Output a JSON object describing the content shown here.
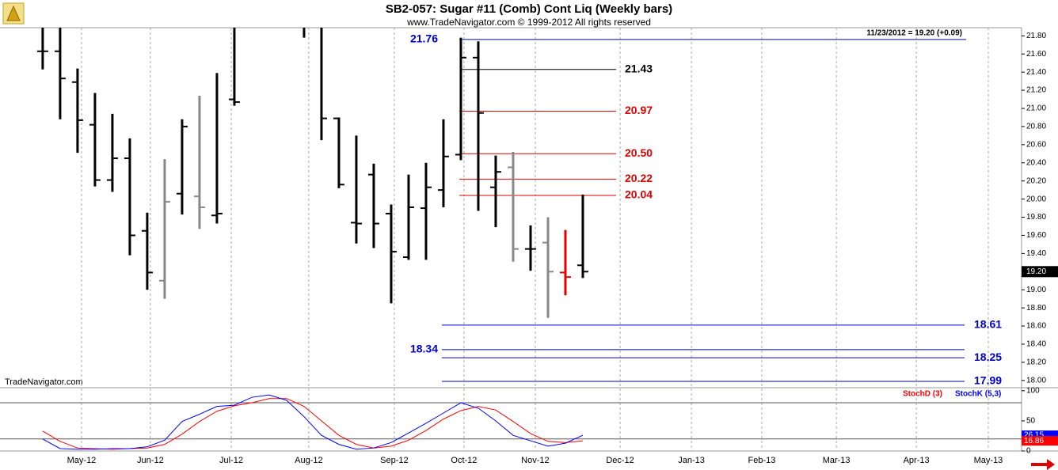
{
  "chart_data": [
    {
      "type": "ohlc",
      "title": "SB2-057:  Sugar #11 (Comb) Cont Liq  (Weekly bars)",
      "subtitle": "www.TradeNavigator.com © 1999-2012 All rights reserved",
      "watermark": "TradeNavigator.com",
      "last_note": "11/23/2012 = 19.20 (+0.09)",
      "last_price": {
        "value": 19.2,
        "label": "19.20"
      },
      "x": [
        0,
        1,
        2,
        3,
        4,
        5,
        6,
        7,
        8,
        9,
        10,
        11,
        15,
        16,
        17,
        18,
        19,
        20,
        21,
        22,
        23,
        24,
        25,
        26,
        27,
        28,
        29,
        30,
        31
      ],
      "open": [
        21.63,
        21.63,
        21.29,
        20.82,
        20.21,
        20.45,
        19.65,
        19.1,
        20.06,
        20.03,
        19.82,
        21.1,
        21.95,
        21.95,
        20.89,
        19.74,
        20.27,
        19.84,
        19.36,
        19.9,
        20.1,
        20.49,
        21.56,
        20.13,
        20.35,
        19.45,
        19.52,
        19.19,
        19.27
      ],
      "high": [
        21.98,
        21.98,
        21.44,
        21.17,
        20.94,
        20.67,
        19.85,
        20.44,
        20.88,
        21.14,
        21.39,
        21.98,
        21.98,
        21.98,
        20.9,
        20.7,
        20.39,
        19.94,
        20.27,
        20.4,
        20.88,
        21.78,
        21.74,
        20.48,
        20.52,
        19.71,
        19.8,
        19.66,
        20.05
      ],
      "low": [
        21.43,
        20.88,
        20.51,
        20.14,
        20.08,
        19.38,
        19.0,
        18.9,
        19.83,
        19.67,
        19.73,
        21.03,
        21.78,
        20.65,
        20.12,
        19.51,
        19.46,
        18.85,
        19.33,
        19.33,
        19.91,
        20.43,
        19.87,
        19.69,
        19.31,
        19.21,
        18.69,
        18.94,
        19.13
      ],
      "close": [
        21.63,
        21.33,
        20.87,
        20.21,
        20.45,
        19.6,
        19.19,
        19.97,
        20.8,
        19.91,
        19.84,
        21.07,
        21.92,
        20.89,
        20.16,
        19.73,
        19.73,
        19.42,
        19.91,
        20.13,
        20.47,
        21.56,
        20.95,
        20.3,
        19.45,
        19.45,
        19.2,
        19.14,
        19.2
      ],
      "colors": [
        "#000000",
        "#000000",
        "#000000",
        "#000000",
        "#000000",
        "#000000",
        "#000000",
        "#888888",
        "#000000",
        "#888888",
        "#000000",
        "#000000",
        "#000000",
        "#000000",
        "#000000",
        "#000000",
        "#000000",
        "#000000",
        "#000000",
        "#000000",
        "#000000",
        "#000000",
        "#000000",
        "#000000",
        "#888888",
        "#000000",
        "#888888",
        "#e00000",
        "#000000"
      ],
      "levels": [
        {
          "value": 21.76,
          "color": "#0000c8"
        },
        {
          "value": 21.43,
          "color": "#000000"
        },
        {
          "value": 20.97,
          "color": "#e00000"
        },
        {
          "value": 20.5,
          "label": "20.50",
          "color": "#e00000"
        },
        {
          "value": 20.22,
          "color": "#e00000"
        },
        {
          "value": 20.04,
          "color": "#e00000"
        },
        {
          "value": 18.61,
          "color": "#0000c8"
        },
        {
          "value": 18.34,
          "color": "#0000c8"
        },
        {
          "value": 18.25,
          "color": "#0000c8"
        },
        {
          "value": 17.99,
          "color": "#0000c8"
        }
      ],
      "xlim": [
        -2.45,
        56.18
      ],
      "xticks": [
        {
          "value": 2.23,
          "label": "May-12"
        },
        {
          "value": 6.18,
          "label": "Jun-12"
        },
        {
          "value": 10.82,
          "label": "Jul-12"
        },
        {
          "value": 15.27,
          "label": "Aug-12"
        },
        {
          "value": 20.18,
          "label": "Sep-12"
        },
        {
          "value": 24.18,
          "label": "Oct-12"
        },
        {
          "value": 28.27,
          "label": "Nov-12"
        },
        {
          "value": 33.14,
          "label": "Dec-12"
        },
        {
          "value": 37.23,
          "label": "Jan-13"
        },
        {
          "value": 41.27,
          "label": "Feb-13"
        },
        {
          "value": 45.55,
          "label": "Mar-13"
        },
        {
          "value": 50.14,
          "label": "Apr-13"
        },
        {
          "value": 54.27,
          "label": "May-13"
        }
      ],
      "ylim": [
        17.92,
        21.89
      ],
      "yticks": [
        {
          "value": 18.0,
          "label": "18.00"
        },
        {
          "value": 18.2,
          "label": "18.20"
        },
        {
          "value": 18.4,
          "label": "18.40"
        },
        {
          "value": 18.6,
          "label": "18.60"
        },
        {
          "value": 18.8,
          "label": "18.80"
        },
        {
          "value": 19.0,
          "label": "19.00"
        },
        {
          "value": 19.2,
          "label": "19.20"
        },
        {
          "value": 19.4,
          "label": "19.40"
        },
        {
          "value": 19.6,
          "label": "19.60"
        },
        {
          "value": 19.8,
          "label": "19.80"
        },
        {
          "value": 20.0,
          "label": "20.00"
        },
        {
          "value": 20.2,
          "label": "20.20"
        },
        {
          "value": 20.4,
          "label": "20.40"
        },
        {
          "value": 20.6,
          "label": "20.60"
        },
        {
          "value": 20.8,
          "label": "20.80"
        },
        {
          "value": 21.0,
          "label": "21.00"
        },
        {
          "value": 21.2,
          "label": "21.20"
        },
        {
          "value": 21.4,
          "label": "21.40"
        },
        {
          "value": 21.6,
          "label": "21.60"
        },
        {
          "value": 21.8,
          "label": "21.80"
        }
      ],
      "grid": true
    },
    {
      "type": "line",
      "x": [
        0,
        1,
        2,
        3,
        4,
        5,
        6,
        7,
        8,
        9,
        10,
        11,
        12,
        13,
        14,
        15,
        16,
        17,
        18,
        19,
        20,
        21,
        22,
        23,
        24,
        25,
        26,
        27,
        28,
        29,
        30,
        31
      ],
      "series": [
        {
          "name": "StochD (3)",
          "color": "#ff0000",
          "values": [
            33,
            16,
            5,
            4,
            3,
            4,
            5,
            11,
            28,
            49,
            66,
            75,
            80,
            87,
            87,
            74,
            50,
            26,
            11,
            5,
            8,
            18,
            34,
            53,
            67,
            74,
            68,
            49,
            29,
            16,
            14,
            16.86
          ]
        },
        {
          "name": "StochK (5,3)",
          "color": "#0000ff",
          "values": [
            20,
            4,
            3,
            3,
            4,
            4,
            7,
            18,
            49,
            61,
            74,
            76,
            89,
            93,
            84,
            57,
            26,
            11,
            3,
            5,
            14,
            30,
            46,
            63,
            80,
            71,
            50,
            26,
            17,
            8,
            13,
            26.15
          ]
        }
      ],
      "ylim": [
        0,
        105
      ],
      "yticks": [
        0,
        50,
        100
      ],
      "levels": [
        80,
        20
      ]
    }
  ]
}
